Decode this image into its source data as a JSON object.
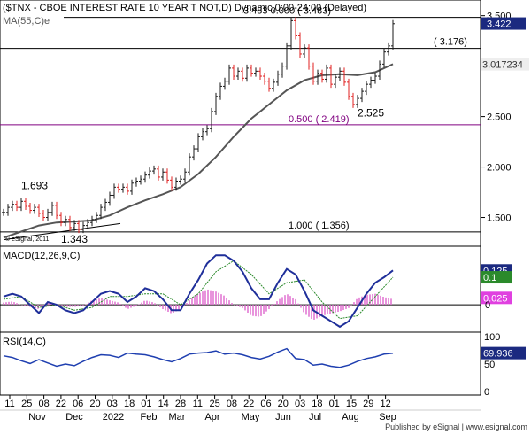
{
  "header": {
    "title": "($TNX - CBOE INTEREST RATE 10 YEAR T NOT,D) Dynamic,0:00-24:00 (Delayed)",
    "ma_label": "MA(55,C)e",
    "copyright": "© eSignal, 2011"
  },
  "colors": {
    "up_bar": "#1a1a1a",
    "down_bar": "#e02020",
    "ma": "#555555",
    "macd": "#1f2f9a",
    "signal": "#2b8a2b",
    "hist": "#e070d0",
    "rsi": "#1f3fb0",
    "fib": "#800080",
    "last_price_bg": "#1b2a80"
  },
  "chart_data": [
    {
      "name": "price",
      "type": "line",
      "x_axis_months": [
        "Nov",
        "Dec",
        "2022",
        "Feb",
        "Mar",
        "Apr",
        "May",
        "Jun",
        "Jul",
        "Aug",
        "Sep"
      ],
      "x_axis_days": [
        "11",
        "25",
        "08",
        "22",
        "06",
        "20",
        "03",
        "18",
        "01",
        "14",
        "28",
        "11",
        "25",
        "08",
        "22",
        "06",
        "20",
        "03",
        "18",
        "01",
        "15",
        "29",
        "12"
      ],
      "y_ticks": [
        "3.500",
        "3.000",
        "2.500",
        "2.000",
        "1.500"
      ],
      "ylim": [
        1.25,
        3.62
      ],
      "last_close": "3.422",
      "ma_last": "3.017234",
      "close_path": [
        [
          0,
          1.55
        ],
        [
          5,
          1.6
        ],
        [
          10,
          1.63
        ],
        [
          15,
          1.6
        ],
        [
          20,
          1.66
        ],
        [
          25,
          1.61
        ],
        [
          30,
          1.57
        ],
        [
          35,
          1.6
        ],
        [
          40,
          1.54
        ],
        [
          45,
          1.5
        ],
        [
          50,
          1.55
        ],
        [
          55,
          1.62
        ],
        [
          60,
          1.52
        ],
        [
          65,
          1.45
        ],
        [
          70,
          1.48
        ],
        [
          75,
          1.4
        ],
        [
          80,
          1.44
        ],
        [
          85,
          1.38
        ],
        [
          90,
          1.42
        ],
        [
          95,
          1.45
        ],
        [
          100,
          1.48
        ],
        [
          105,
          1.52
        ],
        [
          110,
          1.6
        ],
        [
          115,
          1.65
        ],
        [
          120,
          1.72
        ],
        [
          125,
          1.8
        ],
        [
          130,
          1.78
        ],
        [
          135,
          1.8
        ],
        [
          140,
          1.76
        ],
        [
          145,
          1.84
        ],
        [
          150,
          1.86
        ],
        [
          155,
          1.88
        ],
        [
          160,
          1.92
        ],
        [
          165,
          1.96
        ],
        [
          170,
          1.98
        ],
        [
          175,
          1.9
        ],
        [
          180,
          1.95
        ],
        [
          185,
          1.87
        ],
        [
          190,
          1.8
        ],
        [
          195,
          1.86
        ],
        [
          200,
          1.88
        ],
        [
          205,
          1.95
        ],
        [
          210,
          2.1
        ],
        [
          215,
          2.18
        ],
        [
          220,
          2.3
        ],
        [
          225,
          2.35
        ],
        [
          230,
          2.38
        ],
        [
          235,
          2.55
        ],
        [
          240,
          2.7
        ],
        [
          245,
          2.8
        ],
        [
          250,
          2.85
        ],
        [
          255,
          2.98
        ],
        [
          260,
          2.9
        ],
        [
          265,
          2.95
        ],
        [
          270,
          2.88
        ],
        [
          275,
          2.98
        ],
        [
          280,
          2.93
        ],
        [
          285,
          2.95
        ],
        [
          290,
          2.9
        ],
        [
          295,
          2.85
        ],
        [
          300,
          2.78
        ],
        [
          305,
          2.84
        ],
        [
          310,
          2.92
        ],
        [
          315,
          3.0
        ],
        [
          320,
          3.2
        ],
        [
          325,
          3.45
        ],
        [
          330,
          3.3
        ],
        [
          335,
          3.12
        ],
        [
          340,
          3.18
        ],
        [
          345,
          3.0
        ],
        [
          350,
          2.85
        ],
        [
          355,
          2.93
        ],
        [
          360,
          2.87
        ],
        [
          365,
          2.98
        ],
        [
          370,
          2.82
        ],
        [
          375,
          2.89
        ],
        [
          380,
          2.95
        ],
        [
          385,
          2.84
        ],
        [
          390,
          2.7
        ],
        [
          395,
          2.62
        ],
        [
          400,
          2.68
        ],
        [
          405,
          2.75
        ],
        [
          410,
          2.82
        ],
        [
          415,
          2.86
        ],
        [
          420,
          2.9
        ],
        [
          425,
          3.02
        ],
        [
          430,
          3.14
        ],
        [
          435,
          3.2
        ],
        [
          440,
          3.42
        ]
      ],
      "ma_path": [
        [
          0,
          1.3
        ],
        [
          20,
          1.36
        ],
        [
          40,
          1.42
        ],
        [
          60,
          1.45
        ],
        [
          80,
          1.46
        ],
        [
          100,
          1.47
        ],
        [
          120,
          1.52
        ],
        [
          140,
          1.6
        ],
        [
          160,
          1.67
        ],
        [
          180,
          1.73
        ],
        [
          200,
          1.8
        ],
        [
          220,
          1.93
        ],
        [
          240,
          2.1
        ],
        [
          260,
          2.3
        ],
        [
          280,
          2.48
        ],
        [
          300,
          2.62
        ],
        [
          320,
          2.76
        ],
        [
          340,
          2.86
        ],
        [
          360,
          2.91
        ],
        [
          380,
          2.92
        ],
        [
          400,
          2.91
        ],
        [
          420,
          2.94
        ],
        [
          440,
          3.02
        ]
      ],
      "trendline_from": [
        0,
        1.28
      ],
      "trendline_to": [
        132,
        1.44
      ],
      "reference_lines": [
        {
          "value": 3.483,
          "label": "3.483  0.000 ( 3.483)",
          "color": "#000000"
        },
        {
          "value": 3.176,
          "label": "( 3.176)",
          "color": "#000000"
        },
        {
          "value": 2.419,
          "label": "0.500 ( 2.419)",
          "color": "#800080"
        },
        {
          "value": 1.356,
          "label": "1.000 ( 1.356)",
          "color": "#000000"
        },
        {
          "value": 1.693,
          "label": "1.693",
          "color": "#000000"
        }
      ],
      "annotations": [
        {
          "text": "1.693",
          "x": 30,
          "y": 1.78
        },
        {
          "text": "1.343",
          "x": 75,
          "y": 1.25
        },
        {
          "text": "2.525",
          "x": 410,
          "y": 2.5
        },
        {
          "text": "3.483",
          "x": 300,
          "y": 3.56
        }
      ]
    },
    {
      "name": "MACD",
      "title": "MACD(12,26,9,C)",
      "type": "line",
      "ylim": [
        -0.09,
        0.2
      ],
      "values_last": {
        "macd": "0.125",
        "signal": "0.1",
        "hist": "0.025"
      },
      "y_ticks": [
        "0"
      ],
      "macd_path": [
        [
          0,
          0.03
        ],
        [
          10,
          0.04
        ],
        [
          20,
          0.03
        ],
        [
          30,
          0.0
        ],
        [
          40,
          -0.03
        ],
        [
          50,
          0.01
        ],
        [
          60,
          0.0
        ],
        [
          70,
          -0.02
        ],
        [
          80,
          -0.03
        ],
        [
          90,
          -0.02
        ],
        [
          100,
          0.01
        ],
        [
          110,
          0.04
        ],
        [
          120,
          0.05
        ],
        [
          130,
          0.04
        ],
        [
          140,
          0.01
        ],
        [
          150,
          0.03
        ],
        [
          160,
          0.06
        ],
        [
          170,
          0.05
        ],
        [
          180,
          0.02
        ],
        [
          190,
          -0.02
        ],
        [
          200,
          -0.02
        ],
        [
          210,
          0.04
        ],
        [
          220,
          0.09
        ],
        [
          230,
          0.15
        ],
        [
          240,
          0.18
        ],
        [
          250,
          0.18
        ],
        [
          260,
          0.16
        ],
        [
          270,
          0.12
        ],
        [
          280,
          0.06
        ],
        [
          290,
          0.02
        ],
        [
          300,
          0.02
        ],
        [
          310,
          0.08
        ],
        [
          320,
          0.13
        ],
        [
          330,
          0.11
        ],
        [
          340,
          0.05
        ],
        [
          350,
          -0.02
        ],
        [
          360,
          -0.04
        ],
        [
          370,
          -0.06
        ],
        [
          380,
          -0.08
        ],
        [
          390,
          -0.06
        ],
        [
          400,
          -0.01
        ],
        [
          410,
          0.04
        ],
        [
          420,
          0.08
        ],
        [
          430,
          0.1
        ],
        [
          440,
          0.125
        ]
      ],
      "signal_path": [
        [
          0,
          0.02
        ],
        [
          20,
          0.03
        ],
        [
          40,
          -0.01
        ],
        [
          60,
          0.0
        ],
        [
          80,
          -0.02
        ],
        [
          100,
          -0.01
        ],
        [
          120,
          0.03
        ],
        [
          140,
          0.03
        ],
        [
          160,
          0.04
        ],
        [
          180,
          0.04
        ],
        [
          200,
          0.0
        ],
        [
          220,
          0.04
        ],
        [
          240,
          0.12
        ],
        [
          260,
          0.16
        ],
        [
          280,
          0.11
        ],
        [
          300,
          0.04
        ],
        [
          320,
          0.08
        ],
        [
          340,
          0.09
        ],
        [
          360,
          0.01
        ],
        [
          380,
          -0.05
        ],
        [
          400,
          -0.04
        ],
        [
          420,
          0.03
        ],
        [
          440,
          0.1
        ]
      ]
    },
    {
      "name": "RSI",
      "title": "RSI(14,C)",
      "type": "line",
      "ylim": [
        0,
        100
      ],
      "y_ticks": [
        "100",
        "50",
        "0"
      ],
      "value_last": "69.936",
      "rsi_path": [
        [
          0,
          65
        ],
        [
          10,
          62
        ],
        [
          20,
          56
        ],
        [
          30,
          51
        ],
        [
          40,
          58
        ],
        [
          50,
          52
        ],
        [
          60,
          46
        ],
        [
          70,
          50
        ],
        [
          80,
          47
        ],
        [
          90,
          55
        ],
        [
          100,
          62
        ],
        [
          110,
          67
        ],
        [
          120,
          66
        ],
        [
          130,
          62
        ],
        [
          140,
          70
        ],
        [
          150,
          68
        ],
        [
          160,
          67
        ],
        [
          170,
          63
        ],
        [
          180,
          58
        ],
        [
          190,
          54
        ],
        [
          200,
          60
        ],
        [
          210,
          68
        ],
        [
          220,
          70
        ],
        [
          230,
          71
        ],
        [
          240,
          74
        ],
        [
          250,
          68
        ],
        [
          260,
          70
        ],
        [
          270,
          67
        ],
        [
          280,
          62
        ],
        [
          290,
          59
        ],
        [
          300,
          64
        ],
        [
          310,
          72
        ],
        [
          320,
          78
        ],
        [
          330,
          60
        ],
        [
          340,
          58
        ],
        [
          350,
          48
        ],
        [
          360,
          50
        ],
        [
          370,
          46
        ],
        [
          380,
          44
        ],
        [
          390,
          48
        ],
        [
          400,
          55
        ],
        [
          410,
          60
        ],
        [
          420,
          63
        ],
        [
          430,
          68
        ],
        [
          440,
          69.9
        ]
      ]
    }
  ],
  "footer": {
    "published": "Published by eSignal | www.esignal.com"
  }
}
